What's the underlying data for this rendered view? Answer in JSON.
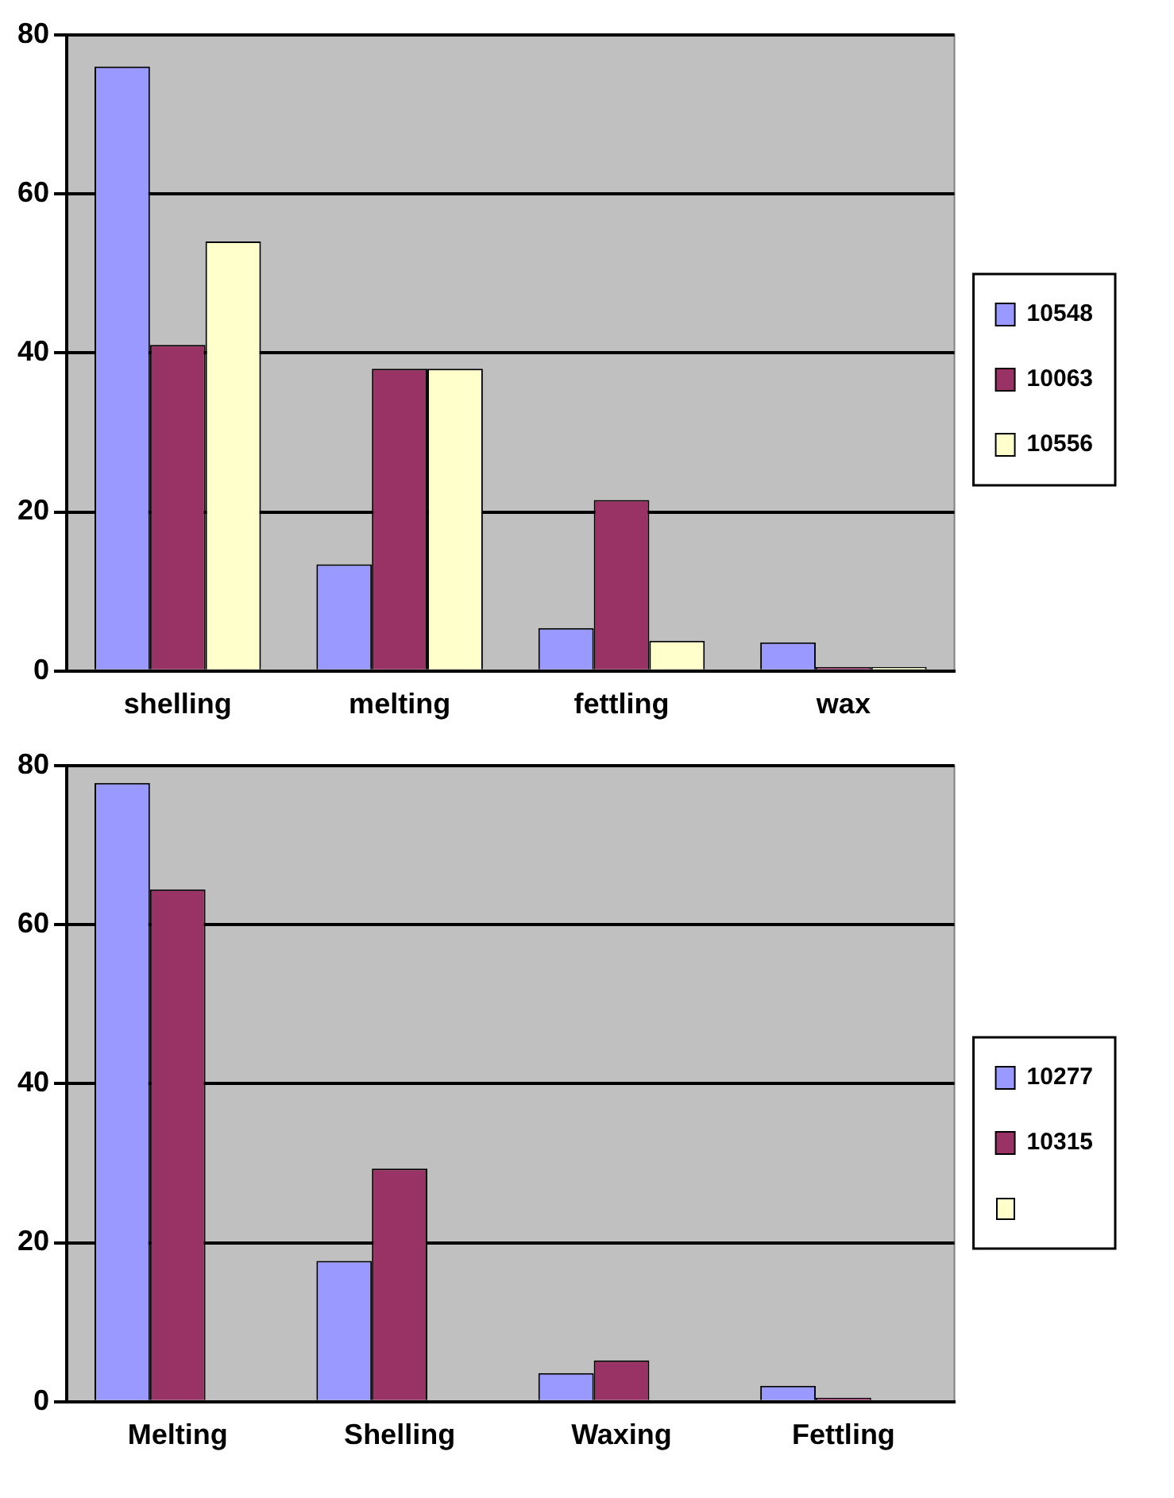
{
  "chart_data": [
    {
      "type": "bar",
      "categories": [
        "shelling",
        "melting",
        "fettling",
        "wax"
      ],
      "series": [
        {
          "name": "10548",
          "color": "#9999ff",
          "values": [
            76,
            13.4,
            5.4,
            3.6
          ]
        },
        {
          "name": "10063",
          "color": "#993366",
          "values": [
            41,
            38,
            21.5,
            0.5
          ]
        },
        {
          "name": "10556",
          "color": "#ffffcc",
          "values": [
            54,
            38,
            3.8,
            0.5
          ]
        }
      ],
      "ylim": [
        0,
        80
      ],
      "yticks": [
        0,
        20,
        40,
        60,
        80
      ],
      "grid": "y",
      "legend": "right"
    },
    {
      "type": "bar",
      "categories": [
        "Melting",
        "Shelling",
        "Waxing",
        "Fettling"
      ],
      "series": [
        {
          "name": "10277",
          "color": "#9999ff",
          "values": [
            77.8,
            17.7,
            3.6,
            2
          ]
        },
        {
          "name": "10315",
          "color": "#993366",
          "values": [
            64.4,
            29.3,
            5.2,
            0.5
          ]
        },
        {
          "color": "#ffffcc",
          "values": [
            null,
            null,
            null,
            null
          ]
        }
      ],
      "ylim": [
        0,
        80
      ],
      "yticks": [
        0,
        20,
        40,
        60,
        80
      ],
      "grid": "y",
      "legend": "right"
    }
  ]
}
